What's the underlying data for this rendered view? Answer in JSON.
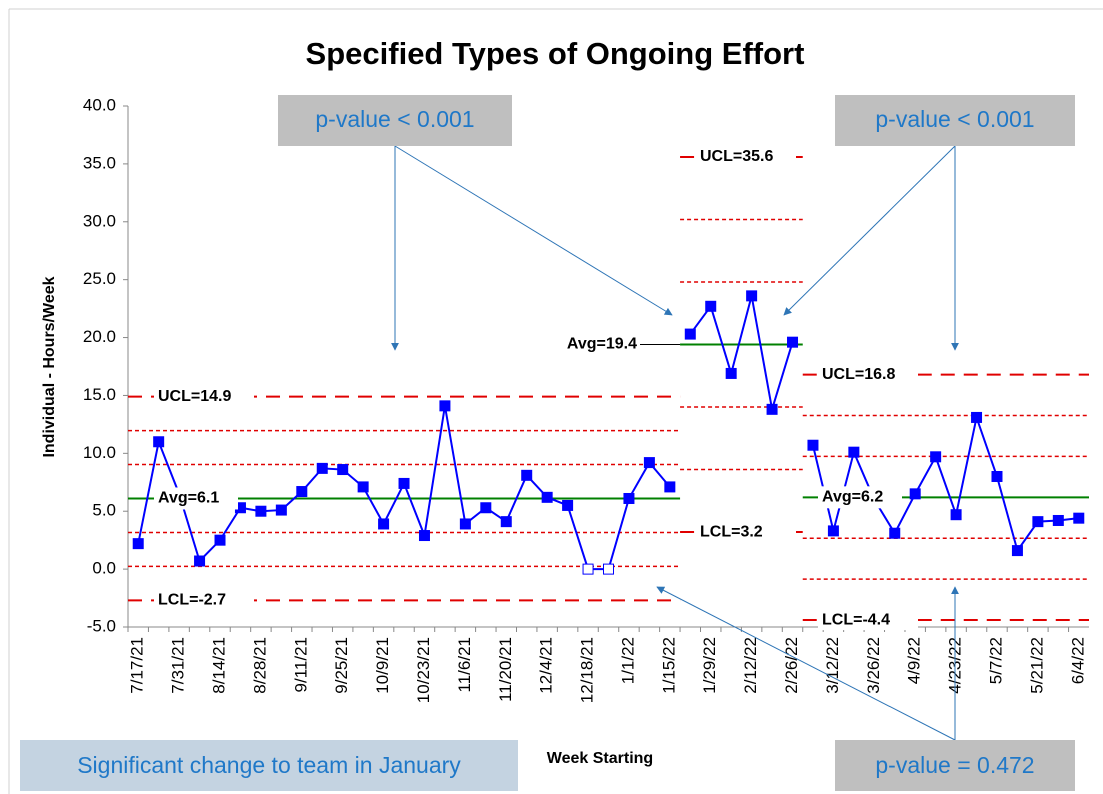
{
  "chart_data": {
    "type": "line",
    "title": "Specified Types of Ongoing Effort",
    "x_label": "Week Starting",
    "y_label": "Individual - Hours/Week",
    "categories": [
      "7/17/21",
      null,
      "7/31/21",
      null,
      "8/14/21",
      null,
      "8/28/21",
      null,
      "9/11/21",
      null,
      "9/25/21",
      null,
      "10/9/21",
      null,
      "10/23/21",
      null,
      "11/6/21",
      null,
      "11/20/21",
      null,
      "12/4/21",
      null,
      "12/18/21",
      null,
      "1/1/22",
      null,
      "1/15/22",
      null,
      "1/29/22",
      null,
      "2/12/22",
      null,
      "2/26/22",
      null,
      "3/12/22",
      null,
      "3/26/22",
      null,
      "4/9/22",
      null,
      "4/23/22",
      null,
      "5/7/22",
      null,
      "5/21/22",
      null,
      "6/4/22"
    ],
    "ylim": [
      -5,
      40
    ],
    "yticks": [
      {
        "value": -5,
        "label": "-5.0"
      },
      {
        "value": 0,
        "label": "0.0"
      },
      {
        "value": 5,
        "label": "5.0"
      },
      {
        "value": 10,
        "label": "10.0"
      },
      {
        "value": 15,
        "label": "15.0"
      },
      {
        "value": 20,
        "label": "20.0"
      },
      {
        "value": 25,
        "label": "25.0"
      },
      {
        "value": 30,
        "label": "30.0"
      },
      {
        "value": 35,
        "label": "35.0"
      },
      {
        "value": 40,
        "label": "40.0"
      }
    ],
    "series": [
      {
        "color": "#0000ff",
        "hollow": [
          22,
          23
        ],
        "values": [
          2.2,
          11.0,
          6.5,
          0.7,
          2.5,
          5.3,
          5.0,
          5.1,
          6.7,
          8.7,
          8.6,
          7.1,
          3.9,
          7.4,
          2.9,
          14.1,
          3.9,
          5.3,
          4.1,
          8.1,
          6.2,
          5.5,
          0,
          0,
          6.1,
          9.2,
          7.1,
          null,
          null,
          null,
          null,
          null,
          null,
          null,
          null,
          null,
          null,
          null,
          null,
          null,
          null,
          null,
          null,
          null,
          null,
          null,
          null
        ]
      },
      {
        "color": "#0000ff",
        "values": [
          null,
          null,
          null,
          null,
          null,
          null,
          null,
          null,
          null,
          null,
          null,
          null,
          null,
          null,
          null,
          null,
          null,
          null,
          null,
          null,
          null,
          null,
          null,
          null,
          null,
          null,
          null,
          20.3,
          22.7,
          16.9,
          23.6,
          13.8,
          19.6,
          null,
          null,
          null,
          null,
          null,
          null,
          null,
          null,
          null,
          null,
          null,
          null,
          null,
          null
        ]
      },
      {
        "color": "#0000ff",
        "values": [
          null,
          null,
          null,
          null,
          null,
          null,
          null,
          null,
          null,
          null,
          null,
          null,
          null,
          null,
          null,
          null,
          null,
          null,
          null,
          null,
          null,
          null,
          null,
          null,
          null,
          null,
          null,
          null,
          null,
          null,
          null,
          null,
          null,
          10.7,
          3.3,
          10.1,
          6.0,
          3.1,
          6.5,
          9.7,
          4.7,
          13.1,
          8.0,
          1.6,
          4.1,
          4.2,
          4.4
        ]
      }
    ],
    "limits": [
      {
        "ucl": 14.9,
        "ucl_label": "UCL=14.9",
        "avg": 6.1,
        "avg_label": "Avg=6.1",
        "lcl": -2.7,
        "lcl_label": "LCL=-2.7"
      },
      {
        "ucl": 35.6,
        "ucl_label": "UCL=35.6",
        "avg": 19.4,
        "avg_label": "Avg=19.4",
        "lcl": 3.2,
        "lcl_label": "LCL=3.2"
      },
      {
        "ucl": 16.8,
        "ucl_label": "UCL=16.8",
        "avg": 6.2,
        "avg_label": "Avg=6.2",
        "lcl": -4.4,
        "lcl_label": "LCL=-4.4"
      }
    ],
    "annotations": [
      "p-value < 0.001",
      "p-value < 0.001",
      "Significant change to team in January",
      "p-value = 0.472"
    ]
  }
}
